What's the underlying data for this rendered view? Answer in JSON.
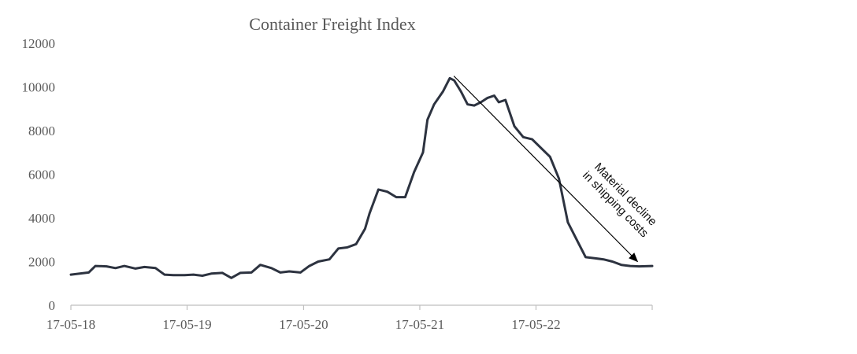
{
  "chart_data": {
    "type": "line",
    "title": "Container Freight Index",
    "xlabel": "",
    "ylabel": "",
    "ylim": [
      0,
      12000
    ],
    "yticks": [
      0,
      2000,
      4000,
      6000,
      8000,
      10000,
      12000
    ],
    "ytick_labels": [
      "0",
      "2000",
      "4000",
      "6000",
      "8000",
      "10000",
      "12000"
    ],
    "xlim": [
      "2018-05-17",
      "2023-05-17"
    ],
    "xtick_dates": [
      "2018-05-17",
      "2019-05-17",
      "2020-05-17",
      "2021-05-17",
      "2022-05-17"
    ],
    "xtick_labels": [
      "17-05-18",
      "17-05-19",
      "17-05-20",
      "17-05-21",
      "17-05-22"
    ],
    "grid": false,
    "legend": "none",
    "line_color": "#2d3340",
    "series": [
      {
        "points": [
          [
            "2018-05-17",
            1400
          ],
          [
            "2018-06-14",
            1450
          ],
          [
            "2018-07-12",
            1500
          ],
          [
            "2018-08-02",
            1800
          ],
          [
            "2018-09-06",
            1780
          ],
          [
            "2018-10-04",
            1700
          ],
          [
            "2018-11-01",
            1800
          ],
          [
            "2018-12-06",
            1680
          ],
          [
            "2019-01-03",
            1750
          ],
          [
            "2019-02-07",
            1700
          ],
          [
            "2019-03-07",
            1400
          ],
          [
            "2019-04-04",
            1380
          ],
          [
            "2019-05-09",
            1380
          ],
          [
            "2019-06-06",
            1400
          ],
          [
            "2019-07-04",
            1350
          ],
          [
            "2019-08-01",
            1450
          ],
          [
            "2019-09-05",
            1480
          ],
          [
            "2019-10-03",
            1250
          ],
          [
            "2019-10-31",
            1480
          ],
          [
            "2019-12-05",
            1500
          ],
          [
            "2020-01-02",
            1850
          ],
          [
            "2020-02-06",
            1700
          ],
          [
            "2020-03-05",
            1500
          ],
          [
            "2020-04-02",
            1550
          ],
          [
            "2020-05-07",
            1500
          ],
          [
            "2020-06-04",
            1800
          ],
          [
            "2020-07-02",
            2000
          ],
          [
            "2020-08-06",
            2100
          ],
          [
            "2020-09-03",
            2600
          ],
          [
            "2020-10-01",
            2650
          ],
          [
            "2020-10-29",
            2800
          ],
          [
            "2020-11-26",
            3500
          ],
          [
            "2020-12-10",
            4200
          ],
          [
            "2021-01-07",
            5300
          ],
          [
            "2021-02-04",
            5200
          ],
          [
            "2021-03-04",
            4950
          ],
          [
            "2021-04-01",
            4950
          ],
          [
            "2021-04-29",
            6100
          ],
          [
            "2021-05-27",
            7000
          ],
          [
            "2021-06-10",
            8500
          ],
          [
            "2021-07-01",
            9200
          ],
          [
            "2021-07-29",
            9800
          ],
          [
            "2021-08-19",
            10400
          ],
          [
            "2021-09-02",
            10300
          ],
          [
            "2021-09-23",
            9800
          ],
          [
            "2021-10-14",
            9200
          ],
          [
            "2021-11-04",
            9150
          ],
          [
            "2021-11-25",
            9300
          ],
          [
            "2021-12-16",
            9500
          ],
          [
            "2022-01-06",
            9600
          ],
          [
            "2022-01-20",
            9300
          ],
          [
            "2022-02-10",
            9400
          ],
          [
            "2022-03-10",
            8200
          ],
          [
            "2022-04-07",
            7700
          ],
          [
            "2022-05-05",
            7600
          ],
          [
            "2022-06-02",
            7200
          ],
          [
            "2022-06-30",
            6800
          ],
          [
            "2022-07-28",
            5800
          ],
          [
            "2022-08-25",
            3800
          ],
          [
            "2022-09-22",
            3000
          ],
          [
            "2022-10-20",
            2200
          ],
          [
            "2022-11-17",
            2150
          ],
          [
            "2022-12-15",
            2100
          ],
          [
            "2023-01-12",
            2000
          ],
          [
            "2023-02-09",
            1850
          ],
          [
            "2023-03-09",
            1800
          ],
          [
            "2023-04-06",
            1780
          ],
          [
            "2023-05-17",
            1800
          ]
        ]
      }
    ],
    "annotation": {
      "text_lines": [
        "Material decline",
        "in shipping costs"
      ],
      "arrow_from": [
        "2021-09-01",
        10500
      ],
      "arrow_to": [
        "2023-04-01",
        2000
      ]
    }
  }
}
